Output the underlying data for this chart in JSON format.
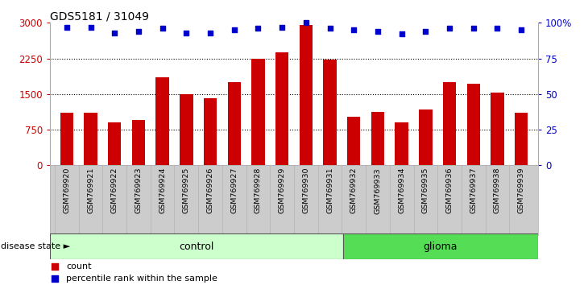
{
  "title": "GDS5181 / 31049",
  "samples": [
    "GSM769920",
    "GSM769921",
    "GSM769922",
    "GSM769923",
    "GSM769924",
    "GSM769925",
    "GSM769926",
    "GSM769927",
    "GSM769928",
    "GSM769929",
    "GSM769930",
    "GSM769931",
    "GSM769932",
    "GSM769933",
    "GSM769934",
    "GSM769935",
    "GSM769936",
    "GSM769937",
    "GSM769938",
    "GSM769939"
  ],
  "bar_values": [
    1100,
    1100,
    900,
    950,
    1850,
    1490,
    1420,
    1750,
    2250,
    2380,
    2950,
    2230,
    1020,
    1130,
    900,
    1170,
    1750,
    1720,
    1530,
    1100
  ],
  "percentile_values": [
    97,
    97,
    93,
    94,
    96,
    93,
    93,
    95,
    96,
    97,
    100,
    96,
    95,
    94,
    92,
    94,
    96,
    96,
    96,
    95
  ],
  "bar_color": "#cc0000",
  "percentile_color": "#0000cc",
  "control_count": 12,
  "glioma_count": 8,
  "control_label": "control",
  "glioma_label": "glioma",
  "control_color": "#ccffcc",
  "glioma_color": "#55dd55",
  "disease_state_label": "disease state",
  "legend_count": "count",
  "legend_percentile": "percentile rank within the sample",
  "ylim_left": [
    0,
    3000
  ],
  "ylim_right": [
    0,
    100
  ],
  "yticks_left": [
    0,
    750,
    1500,
    2250,
    3000
  ],
  "ytick_labels_left": [
    "0",
    "750",
    "1500",
    "2250",
    "3000"
  ],
  "yticks_right": [
    0,
    25,
    50,
    75,
    100
  ],
  "ytick_labels_right": [
    "0",
    "25",
    "50",
    "75",
    "100%"
  ],
  "tick_area_color": "#cccccc",
  "bg_color": "#ffffff",
  "spine_color": "#aaaaaa"
}
